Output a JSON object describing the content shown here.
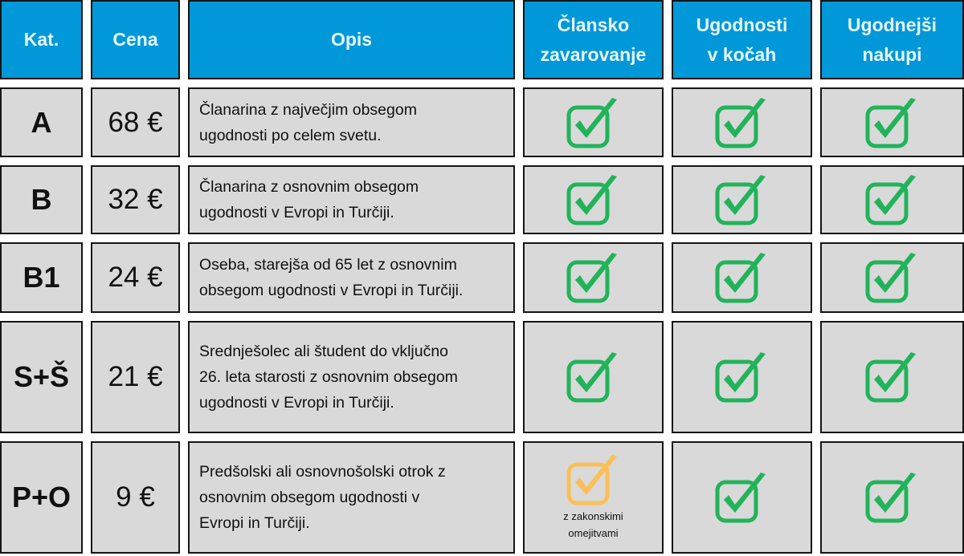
{
  "colors": {
    "header_bg": "#0098d8",
    "header_text": "#e6f7ff",
    "cell_bg": "#d9d9d9",
    "check_full": "#22b35a",
    "check_limited": "#fbbf5a"
  },
  "headers": [
    {
      "lines": [
        "Kat."
      ]
    },
    {
      "lines": [
        "Cena"
      ]
    },
    {
      "lines": [
        "Opis"
      ]
    },
    {
      "lines": [
        "Člansko",
        "zavarovanje"
      ]
    },
    {
      "lines": [
        "Ugodnosti",
        "v kočah"
      ]
    },
    {
      "lines": [
        "Ugodnejši",
        "nakupi"
      ]
    }
  ],
  "rows": [
    {
      "kat": "A",
      "cena": "68 €",
      "opis": [
        "Članarina z največjim obsegom",
        "ugodnosti po celem svetu."
      ],
      "benefits": [
        {
          "icon": "check-full"
        },
        {
          "icon": "check-full"
        },
        {
          "icon": "check-full"
        }
      ]
    },
    {
      "kat": "B",
      "cena": "32 €",
      "opis": [
        "Članarina z osnovnim obsegom",
        "ugodnosti v Evropi in Turčiji."
      ],
      "benefits": [
        {
          "icon": "check-full"
        },
        {
          "icon": "check-full"
        },
        {
          "icon": "check-full"
        }
      ]
    },
    {
      "kat": "B1",
      "cena": "24 €",
      "opis": [
        "Oseba, starejša od 65 let z osnovnim",
        "obsegom ugodnosti v Evropi in Turčiji."
      ],
      "benefits": [
        {
          "icon": "check-full"
        },
        {
          "icon": "check-full"
        },
        {
          "icon": "check-full"
        }
      ]
    },
    {
      "kat": "S+Š",
      "cena": "21 €",
      "opis": [
        "Srednješolec ali študent do vključno",
        "26. leta starosti z osnovnim obsegom",
        "ugodnosti v Evropi in Turčiji."
      ],
      "benefits": [
        {
          "icon": "check-full"
        },
        {
          "icon": "check-full"
        },
        {
          "icon": "check-full"
        }
      ]
    },
    {
      "kat": "P+O",
      "cena": "9 €",
      "opis": [
        "Predšolski ali osnovnošolski otrok z",
        "osnovnim obsegom ugodnosti v",
        "Evropi in Turčiji."
      ],
      "benefits": [
        {
          "icon": "check-limited",
          "note": [
            "z zakonskimi",
            "omejitvami"
          ]
        },
        {
          "icon": "check-full"
        },
        {
          "icon": "check-full"
        }
      ]
    }
  ]
}
